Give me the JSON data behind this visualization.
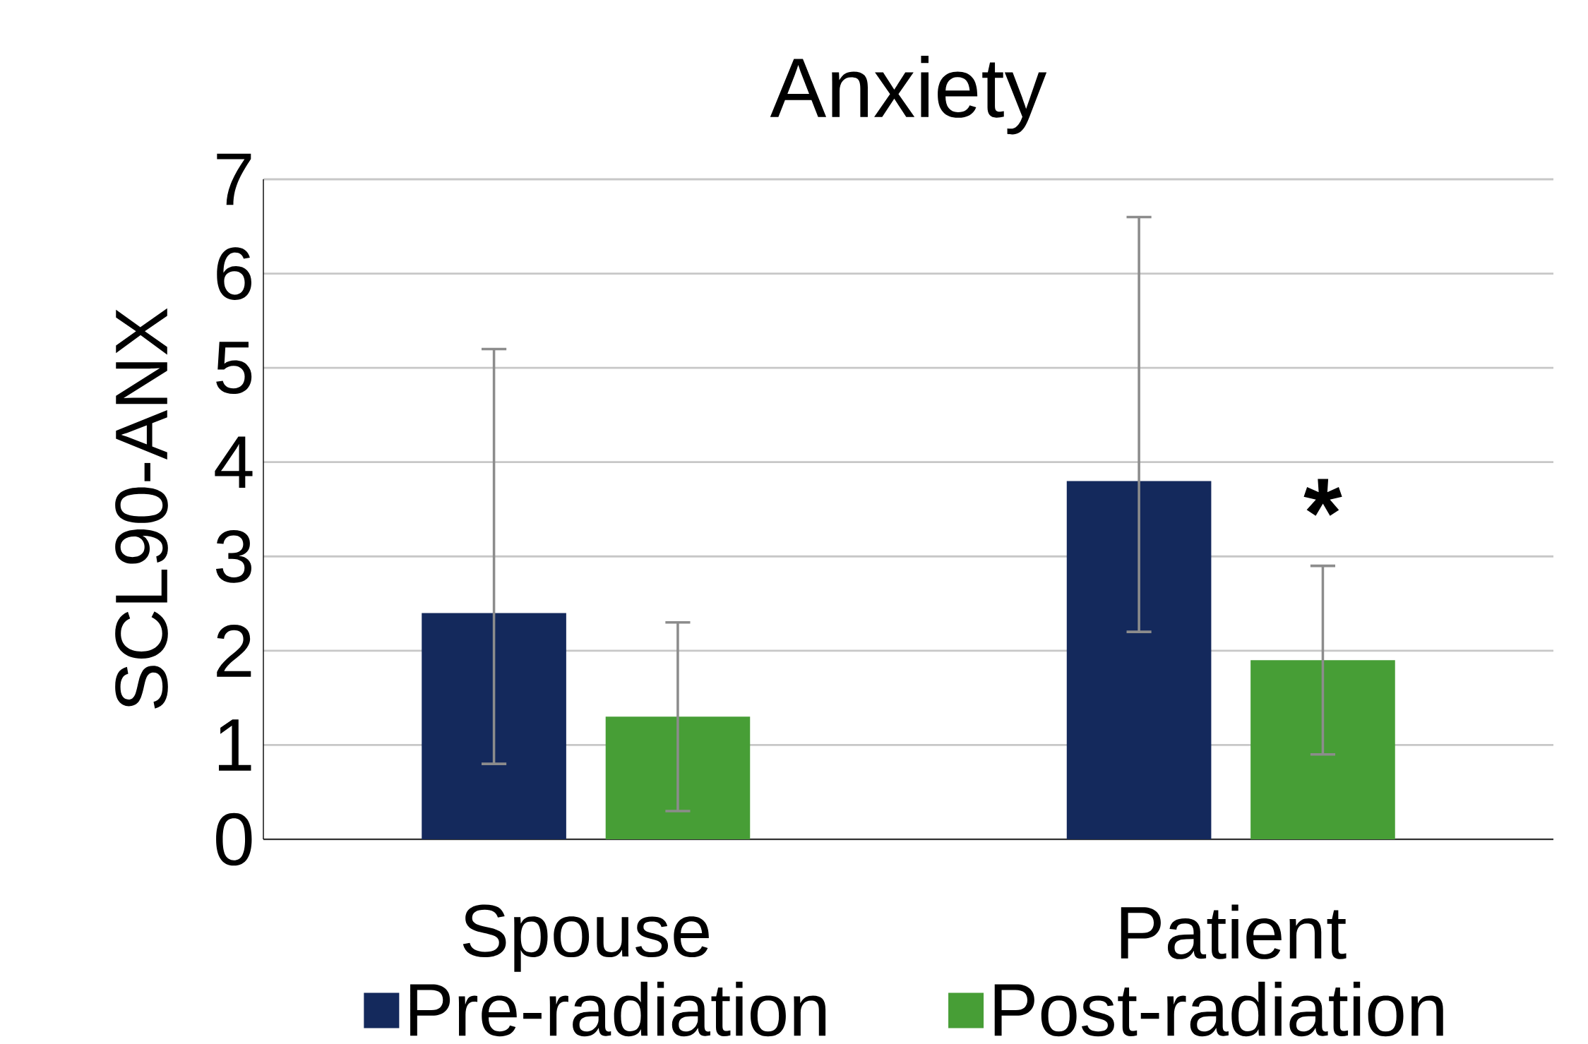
{
  "chart_data": {
    "type": "bar",
    "title": "Anxiety",
    "ylabel": "SCL90-ANX",
    "categories": [
      "Spouse",
      "Patient"
    ],
    "series": [
      {
        "name": "Pre-radiation",
        "color": "#14295c",
        "values": [
          2.4,
          3.8
        ],
        "errors": [
          [
            0.8,
            5.2
          ],
          [
            2.2,
            6.6
          ]
        ]
      },
      {
        "name": "Post-radiation",
        "color": "#479e36",
        "values": [
          1.3,
          1.9
        ],
        "errors": [
          [
            0.3,
            2.3
          ],
          [
            0.9,
            2.9
          ]
        ]
      }
    ],
    "ylim": [
      0,
      7
    ],
    "yticks": [
      0,
      1,
      2,
      3,
      4,
      5,
      6,
      7
    ],
    "grid": "y",
    "legend": "bottom",
    "annotations": [
      "*"
    ]
  }
}
